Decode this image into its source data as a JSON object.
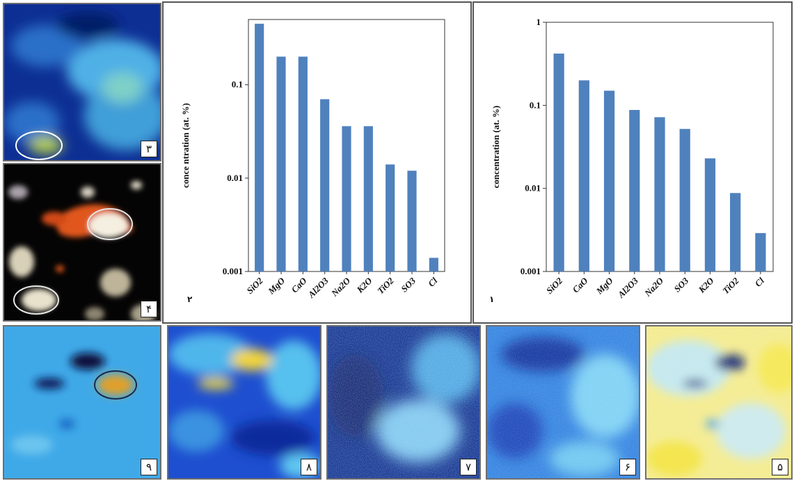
{
  "panels": {
    "p3": {
      "label": "۳"
    },
    "p4": {
      "label": "۴"
    },
    "p9": {
      "label": "۹"
    },
    "p8": {
      "label": "۸"
    },
    "p7": {
      "label": "۷"
    },
    "p6": {
      "label": "۶"
    },
    "p5": {
      "label": "۵"
    }
  },
  "colors": {
    "bar": "#4f81bd",
    "map_dark": "#0a1f6e",
    "map_cyan": "#3fb8e0",
    "map_yellow": "#f2e23a",
    "map_orange": "#e38a1e"
  },
  "chart_data": [
    {
      "type": "bar",
      "panel_label": "۲",
      "ylabel": "conce ntration (at. %)",
      "yscale": "log",
      "ylim": [
        0.001,
        0.5
      ],
      "yticks": [
        "0.1",
        "0.01",
        "0.001"
      ],
      "categories": [
        "SiO2",
        "MgO",
        "CaO",
        "Al2O3",
        "Na2O",
        "K2O",
        "TiO2",
        "SO3",
        "Cl"
      ],
      "values": [
        0.45,
        0.2,
        0.2,
        0.07,
        0.036,
        0.036,
        0.014,
        0.012,
        0.0014
      ]
    },
    {
      "type": "bar",
      "panel_label": "۱",
      "ylabel": "concentration (at. %)",
      "yscale": "log",
      "ylim": [
        0.001,
        1
      ],
      "yticks": [
        "1",
        "0.1",
        "0.01",
        "0.001"
      ],
      "categories": [
        "SiO2",
        "CaO",
        "MgO",
        "Al2O3",
        "Na2O",
        "SO3",
        "K2O",
        "TiO2",
        "Cl"
      ],
      "values": [
        0.42,
        0.2,
        0.15,
        0.088,
        0.072,
        0.052,
        0.023,
        0.0088,
        0.0029
      ]
    }
  ]
}
